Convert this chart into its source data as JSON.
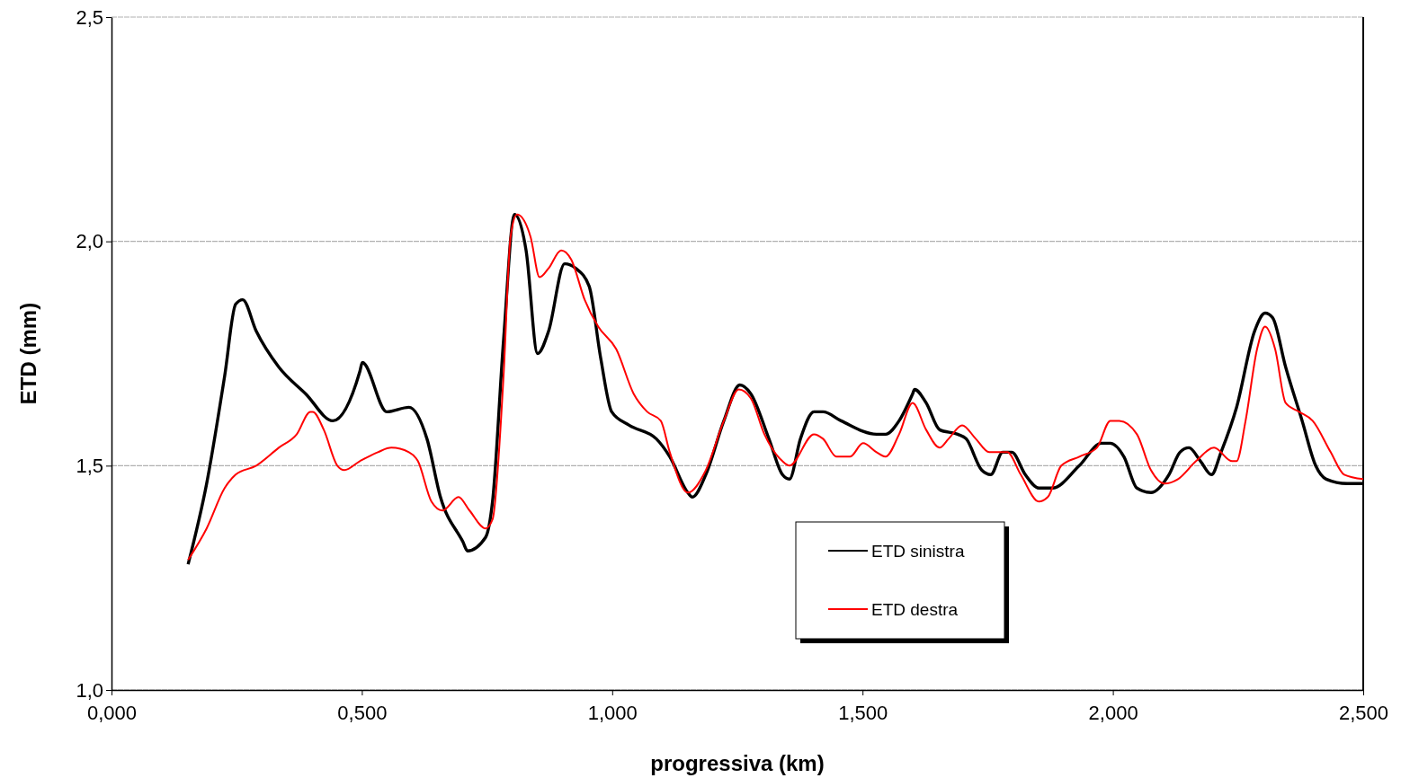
{
  "chart_data": {
    "type": "line",
    "xlabel": "progressiva (km)",
    "ylabel": "ETD (mm)",
    "xlim": [
      0,
      2.5
    ],
    "ylim": [
      1,
      2.5
    ],
    "xticks": [
      {
        "value": 0,
        "label": "0,000"
      },
      {
        "value": 0.5,
        "label": "0,500"
      },
      {
        "value": 1,
        "label": "1,000"
      },
      {
        "value": 1.5,
        "label": "1,500"
      },
      {
        "value": 2,
        "label": "2,000"
      },
      {
        "value": 2.5,
        "label": "2,500"
      }
    ],
    "yticks": [
      {
        "value": 1,
        "label": "1,0"
      },
      {
        "value": 1.5,
        "label": "1,5"
      },
      {
        "value": 2,
        "label": "2,0"
      },
      {
        "value": 2.5,
        "label": "2,5"
      }
    ],
    "grid": "y",
    "legend": "bottom right",
    "marker": "none",
    "line_style": "solid",
    "series": [
      {
        "name": "ETD sinistra",
        "color": "#000000",
        "x": [
          0.153,
          0.19,
          0.226,
          0.248,
          0.262,
          0.289,
          0.334,
          0.388,
          0.442,
          0.496,
          0.501,
          0.55,
          0.594,
          0.63,
          0.657,
          0.702,
          0.711,
          0.747,
          0.761,
          0.783,
          0.805,
          0.828,
          0.851,
          0.873,
          0.905,
          0.927,
          0.954,
          0.977,
          0.999,
          1.034,
          1.088,
          1.115,
          1.151,
          1.16,
          1.187,
          1.223,
          1.255,
          1.277,
          1.313,
          1.34,
          1.354,
          1.376,
          1.403,
          1.421,
          1.457,
          1.528,
          1.546,
          1.573,
          1.6,
          1.604,
          1.627,
          1.654,
          1.69,
          1.707,
          1.738,
          1.756,
          1.78,
          1.798,
          1.825,
          1.852,
          1.879,
          1.933,
          1.977,
          1.995,
          2.022,
          2.048,
          2.076,
          2.112,
          2.134,
          2.152,
          2.175,
          2.197,
          2.216,
          2.247,
          2.283,
          2.304,
          2.319,
          2.345,
          2.378,
          2.405,
          2.426,
          2.468,
          2.5
        ],
        "values": [
          1.28,
          1.46,
          1.7,
          1.86,
          1.87,
          1.8,
          1.72,
          1.66,
          1.6,
          1.71,
          1.73,
          1.62,
          1.63,
          1.56,
          1.43,
          1.33,
          1.31,
          1.34,
          1.42,
          1.78,
          2.06,
          1.98,
          1.75,
          1.8,
          1.95,
          1.94,
          1.9,
          1.74,
          1.62,
          1.59,
          1.56,
          1.52,
          1.44,
          1.43,
          1.48,
          1.6,
          1.68,
          1.66,
          1.56,
          1.48,
          1.47,
          1.56,
          1.62,
          1.62,
          1.6,
          1.57,
          1.57,
          1.6,
          1.66,
          1.67,
          1.64,
          1.58,
          1.57,
          1.56,
          1.49,
          1.48,
          1.53,
          1.53,
          1.48,
          1.45,
          1.45,
          1.5,
          1.55,
          1.55,
          1.52,
          1.45,
          1.44,
          1.48,
          1.53,
          1.54,
          1.51,
          1.48,
          1.53,
          1.63,
          1.8,
          1.84,
          1.83,
          1.72,
          1.6,
          1.5,
          1.47,
          1.46,
          1.46
        ]
      },
      {
        "name": "ETD destra",
        "color": "#ff0000",
        "x": [
          0.153,
          0.19,
          0.226,
          0.248,
          0.289,
          0.334,
          0.37,
          0.397,
          0.402,
          0.424,
          0.451,
          0.465,
          0.496,
          0.532,
          0.559,
          0.594,
          0.612,
          0.639,
          0.661,
          0.693,
          0.715,
          0.747,
          0.761,
          0.783,
          0.797,
          0.81,
          0.837,
          0.855,
          0.873,
          0.898,
          0.918,
          0.945,
          0.972,
          1.008,
          1.043,
          1.07,
          1.097,
          1.115,
          1.151,
          1.187,
          1.223,
          1.253,
          1.277,
          1.304,
          1.34,
          1.354,
          1.403,
          1.421,
          1.448,
          1.475,
          1.501,
          1.528,
          1.546,
          1.573,
          1.6,
          1.627,
          1.654,
          1.672,
          1.699,
          1.726,
          1.753,
          1.789,
          1.816,
          1.852,
          1.87,
          1.897,
          1.933,
          1.968,
          1.995,
          2.013,
          2.048,
          2.076,
          2.103,
          2.13,
          2.166,
          2.202,
          2.238,
          2.247,
          2.265,
          2.288,
          2.304,
          2.324,
          2.345,
          2.372,
          2.399,
          2.435,
          2.462,
          2.5
        ],
        "values": [
          1.29,
          1.36,
          1.45,
          1.48,
          1.5,
          1.54,
          1.57,
          1.62,
          1.62,
          1.58,
          1.5,
          1.49,
          1.51,
          1.53,
          1.54,
          1.53,
          1.51,
          1.42,
          1.4,
          1.43,
          1.4,
          1.36,
          1.38,
          1.7,
          2.01,
          2.06,
          2.01,
          1.92,
          1.94,
          1.98,
          1.96,
          1.87,
          1.81,
          1.76,
          1.66,
          1.62,
          1.6,
          1.53,
          1.44,
          1.49,
          1.6,
          1.67,
          1.65,
          1.57,
          1.51,
          1.5,
          1.57,
          1.56,
          1.52,
          1.52,
          1.55,
          1.53,
          1.52,
          1.57,
          1.64,
          1.58,
          1.54,
          1.56,
          1.59,
          1.56,
          1.53,
          1.53,
          1.48,
          1.42,
          1.43,
          1.5,
          1.52,
          1.54,
          1.6,
          1.6,
          1.57,
          1.49,
          1.46,
          1.47,
          1.51,
          1.54,
          1.51,
          1.51,
          1.6,
          1.76,
          1.81,
          1.76,
          1.64,
          1.62,
          1.6,
          1.53,
          1.48,
          1.47
        ]
      }
    ]
  }
}
